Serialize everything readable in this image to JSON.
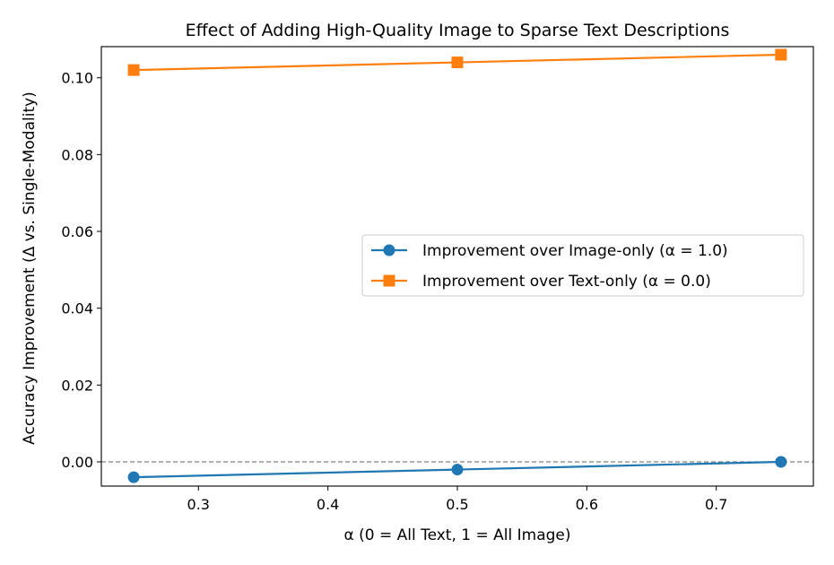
{
  "chart_data": {
    "type": "line",
    "title": "Effect of Adding High-Quality Image to Sparse Text Descriptions",
    "xlabel": "α (0 = All Text, 1 = All Image)",
    "ylabel": "Accuracy Improvement (Δ vs. Single-Modality)",
    "x": [
      0.25,
      0.5,
      0.75
    ],
    "xlim": [
      0.225,
      0.775
    ],
    "ylim": [
      -0.0063,
      0.1081
    ],
    "xticks": [
      "0.3",
      "0.4",
      "0.5",
      "0.6",
      "0.7"
    ],
    "yticks": [
      "0.00",
      "0.02",
      "0.04",
      "0.06",
      "0.08",
      "0.10"
    ],
    "grid": false,
    "legend_position": "center-right",
    "reference_line": {
      "y": 0.0,
      "style": "dashed",
      "color": "#808080"
    },
    "series": [
      {
        "name": "Improvement over Image-only (α = 1.0)",
        "values": [
          -0.004,
          -0.002,
          0.0
        ],
        "color": "#1f77b4",
        "marker": "circle"
      },
      {
        "name": "Improvement over Text-only (α = 0.0)",
        "values": [
          0.102,
          0.104,
          0.106
        ],
        "color": "#ff7f0e",
        "marker": "square"
      }
    ]
  }
}
